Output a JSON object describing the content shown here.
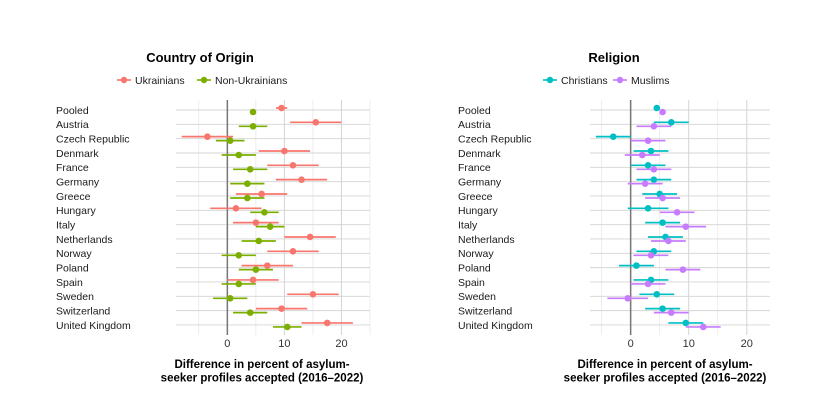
{
  "chart_data": [
    {
      "type": "scatter",
      "title": "Country of Origin",
      "xlabel": "Difference in percent of asylum-seeker profiles accepted (2016–2022)",
      "xlim": [
        -9,
        25
      ],
      "xticks": [
        0,
        10,
        20
      ],
      "legend_position": "top",
      "grid": true,
      "categories": [
        "Pooled",
        "Austria",
        "Czech Republic",
        "Denmark",
        "France",
        "Germany",
        "Greece",
        "Hungary",
        "Italy",
        "Netherlands",
        "Norway",
        "Poland",
        "Spain",
        "Sweden",
        "Switzerland",
        "United Kingdom"
      ],
      "series": [
        {
          "name": "Ukrainians",
          "color": "#F8766D",
          "values": [
            9.5,
            15.5,
            -3.5,
            10,
            11.5,
            13,
            6,
            1.5,
            5,
            14.5,
            11.5,
            7,
            4.5,
            15,
            9.5,
            17.5
          ],
          "ci_low": [
            8.5,
            11,
            -8,
            5.5,
            7,
            8.5,
            1.5,
            -3,
            1,
            10,
            7,
            2.5,
            0,
            10.5,
            5,
            13
          ]
        },
        {
          "name": "Non-Ukrainians",
          "color": "#7CAE00",
          "values": [
            4.5,
            4.5,
            0.5,
            2,
            4,
            3.5,
            3.5,
            6.5,
            7.5,
            5.5,
            2,
            5,
            2,
            0.5,
            4,
            10.5
          ],
          "ci_low": [
            4,
            2,
            -2,
            -1,
            1,
            0.5,
            0.5,
            4,
            5,
            2.5,
            -1,
            2,
            -1,
            -2.5,
            1,
            8
          ]
        }
      ]
    },
    {
      "type": "scatter",
      "title": "Religion",
      "xlabel": "Difference in percent of asylum-seeker profiles accepted (2016–2022)",
      "xlim": [
        -7,
        24
      ],
      "xticks": [
        0,
        10,
        20
      ],
      "legend_position": "top",
      "grid": true,
      "categories": [
        "Pooled",
        "Austria",
        "Czech Republic",
        "Denmark",
        "France",
        "Germany",
        "Greece",
        "Hungary",
        "Italy",
        "Netherlands",
        "Norway",
        "Poland",
        "Spain",
        "Sweden",
        "Switzerland",
        "United Kingdom"
      ],
      "series": [
        {
          "name": "Christians",
          "color": "#00BFC4",
          "values": [
            4.5,
            7,
            -3,
            3.5,
            3,
            4,
            5,
            3,
            5.5,
            6,
            4,
            1,
            3.5,
            4.5,
            5.5,
            9.5
          ],
          "ci_low": [
            4,
            4,
            -6,
            0.5,
            0,
            1,
            2,
            -0.5,
            2.5,
            3,
            1,
            -2,
            0.5,
            1.5,
            2.5,
            6.5
          ]
        },
        {
          "name": "Muslims",
          "color": "#C77CFF",
          "values": [
            5.5,
            4,
            3,
            2,
            4,
            2.5,
            5.5,
            8,
            9.5,
            6.5,
            3.5,
            9,
            3,
            -0.5,
            7,
            12.5
          ],
          "ci_low": [
            5,
            1,
            0,
            -1,
            1,
            -0.5,
            2.5,
            5,
            6,
            3.5,
            0.5,
            6,
            0,
            -4,
            4,
            9.5
          ]
        }
      ]
    }
  ]
}
